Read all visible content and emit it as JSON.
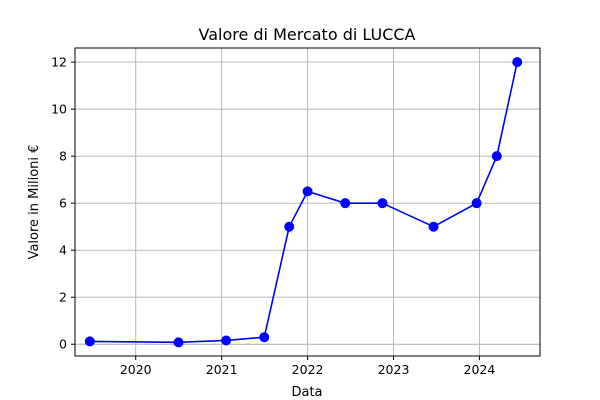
{
  "chart_data": {
    "type": "line",
    "title": "Valore di Mercato di LUCCA",
    "xlabel": "Data",
    "ylabel": "Valore in Milioni €",
    "x_tick_labels": [
      "2020",
      "2021",
      "2022",
      "2023",
      "2024"
    ],
    "y_tick_labels": [
      "0",
      "2",
      "4",
      "6",
      "8",
      "10",
      "12"
    ],
    "ylim": [
      -0.5,
      12.6
    ],
    "xlim": [
      "2019-04-18",
      "2024-09-15"
    ],
    "grid": true,
    "series": [
      {
        "color": "#0000ff",
        "marker": "circle",
        "points": [
          {
            "x": "2019-06-20",
            "y": 0.12
          },
          {
            "x": "2020-07-01",
            "y": 0.08
          },
          {
            "x": "2021-01-20",
            "y": 0.16
          },
          {
            "x": "2021-07-01",
            "y": 0.3
          },
          {
            "x": "2021-10-15",
            "y": 5.0
          },
          {
            "x": "2022-01-01",
            "y": 6.5
          },
          {
            "x": "2022-06-10",
            "y": 6.0
          },
          {
            "x": "2022-11-15",
            "y": 6.0
          },
          {
            "x": "2023-06-20",
            "y": 5.0
          },
          {
            "x": "2023-12-20",
            "y": 6.0
          },
          {
            "x": "2024-03-15",
            "y": 8.0
          },
          {
            "x": "2024-06-10",
            "y": 12.0
          }
        ]
      }
    ]
  },
  "colors": {
    "line": "#0000ff",
    "grid": "#b0b0b0",
    "axes": "#000000"
  }
}
